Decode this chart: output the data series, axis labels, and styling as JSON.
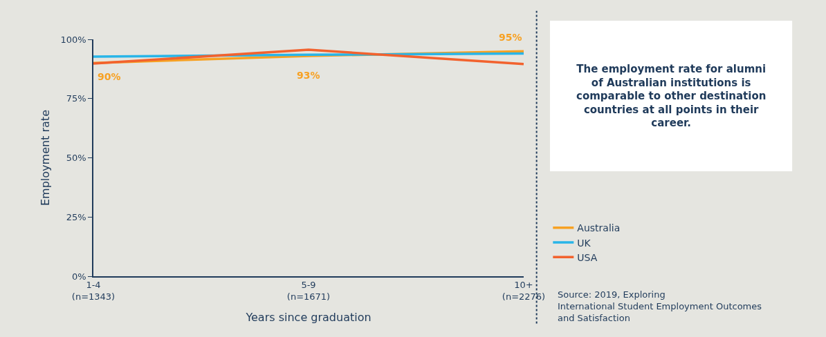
{
  "chart_data": {
    "type": "line",
    "categories": [
      "1-4\n(n=1343)",
      "5-9\n(n=1671)",
      "10+\n(n=2276)"
    ],
    "series": [
      {
        "name": "Australia",
        "color": "#f7a123",
        "values": [
          90,
          93,
          95
        ],
        "value_labels": [
          "90%",
          "93%",
          "95%"
        ]
      },
      {
        "name": "UK",
        "color": "#29b5e8",
        "values": [
          92.7,
          93.5,
          94
        ]
      },
      {
        "name": "USA",
        "color": "#f2622e",
        "values": [
          89.8,
          95.6,
          89.6
        ]
      }
    ],
    "xlabel": "Years since graduation",
    "ylabel": "Employment rate",
    "ylim": [
      0,
      100
    ],
    "yticks": [
      {
        "value": 0,
        "label": "0%"
      },
      {
        "value": 25,
        "label": "25%"
      },
      {
        "value": 50,
        "label": "50%"
      },
      {
        "value": 75,
        "label": "75%"
      },
      {
        "value": 100,
        "label": "100%"
      }
    ],
    "grid": false,
    "legend": "right",
    "marker": "none",
    "line_style": "solid",
    "annotations": [
      "The employment rate for alumni\nof Australian institutions is\ncomparable to other destination\ncountries at all points in their\ncareer.",
      "Source: 2019, Exploring\nInternational Student Employment Outcomes\nand Satisfaction"
    ]
  }
}
